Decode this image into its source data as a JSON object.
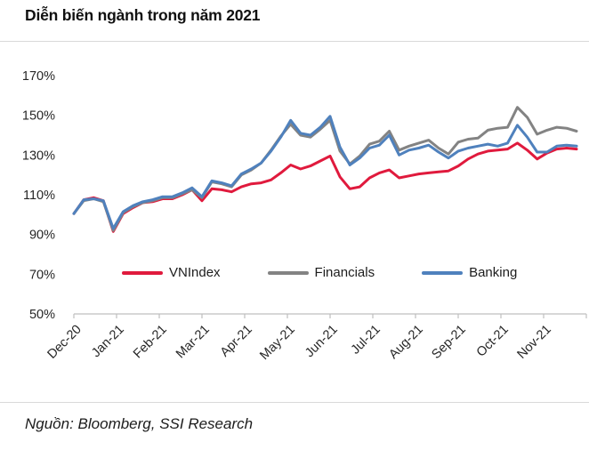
{
  "header": {
    "title": "Diễn biến ngành trong năm 2021"
  },
  "footer": {
    "source": "Nguồn: Bloomberg, SSI Research"
  },
  "chart_data": {
    "type": "line",
    "title": "Diễn biến ngành trong năm 2021",
    "xlabel": "",
    "ylabel": "",
    "ylim": [
      50,
      170
    ],
    "y_tick_labels": [
      "170%",
      "150%",
      "130%",
      "110%",
      "90%",
      "70%",
      "50%"
    ],
    "categories": [
      "Dec-20",
      "Jan-21",
      "Feb-21",
      "Mar-21",
      "Apr-21",
      "May-21",
      "Jun-21",
      "Jul-21",
      "Aug-21",
      "Sep-21",
      "Oct-21",
      "Nov-21"
    ],
    "grid": false,
    "legend_position": "inside-bottom",
    "axis_color": "#bfbfbf",
    "text_color": "#262626",
    "series": [
      {
        "name": "VNIndex",
        "color": "#E01A3D",
        "values": [
          100.5,
          107.5,
          108.5,
          107,
          91.5,
          100.5,
          103.5,
          106,
          106.5,
          108,
          108,
          110,
          112.5,
          107,
          113,
          112.5,
          111.5,
          114,
          115.5,
          116,
          117.5,
          121,
          125,
          123,
          124.5,
          127,
          129.5,
          119,
          113,
          114,
          118.5,
          121,
          122.5,
          118.5,
          119.5,
          120.5,
          121,
          121.5,
          122,
          124.5,
          128,
          130.5,
          132,
          132.5,
          133,
          136,
          132.5,
          128,
          131,
          133,
          133.5,
          133
        ]
      },
      {
        "name": "Financials",
        "color": "#838383",
        "values": [
          100.5,
          107,
          108,
          106.5,
          92,
          101,
          104,
          106,
          107,
          108.5,
          108.5,
          110.5,
          112.5,
          108.5,
          116.5,
          115.5,
          114,
          120,
          122.5,
          126,
          132.5,
          139.5,
          145.5,
          140,
          139,
          143,
          147.5,
          132,
          125.5,
          129.5,
          135.5,
          137,
          142,
          132.5,
          134.5,
          136,
          137.5,
          133.5,
          130.5,
          136.5,
          138,
          138.5,
          142.5,
          143.5,
          144,
          154,
          149,
          140.5,
          142.5,
          144,
          143.5,
          142
        ]
      },
      {
        "name": "Banking",
        "color": "#4F81BD",
        "values": [
          100.5,
          107.5,
          108,
          107,
          93,
          101.5,
          104.5,
          106.5,
          107.5,
          109,
          109,
          111,
          113.5,
          109,
          117,
          116,
          114.5,
          120.5,
          123,
          126,
          132,
          139,
          147.5,
          141,
          140,
          144,
          149.5,
          134,
          125,
          128.5,
          133.5,
          135,
          140,
          130,
          132.5,
          133.5,
          135,
          131.5,
          128.5,
          132,
          133.5,
          134.5,
          135.5,
          134.5,
          136,
          145,
          139,
          131.5,
          131.5,
          134.5,
          135,
          134.5
        ]
      }
    ]
  }
}
